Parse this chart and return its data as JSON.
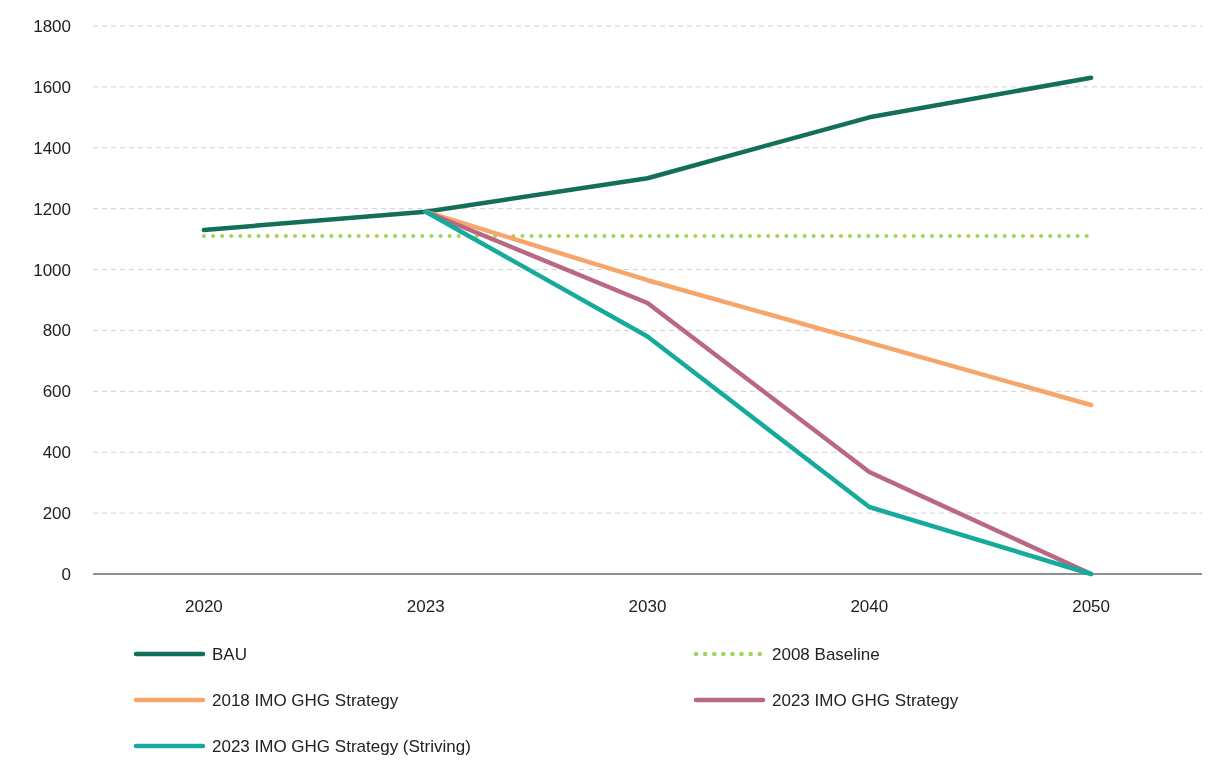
{
  "chart_data": {
    "type": "line",
    "categories": [
      "2020",
      "2023",
      "2030",
      "2040",
      "2050"
    ],
    "series": [
      {
        "name": "BAU",
        "color": "#136f57",
        "values": [
          1130,
          1190,
          1300,
          1500,
          1630
        ],
        "line_style": "solid"
      },
      {
        "name": "2008 Baseline",
        "color": "#a5d45a",
        "values": [
          1110,
          1110,
          1110,
          1110,
          1110
        ],
        "line_style": "dotted"
      },
      {
        "name": "2018 IMO GHG Strategy",
        "color": "#f6a66a",
        "values": [
          null,
          1190,
          965,
          760,
          555
        ],
        "line_style": "solid"
      },
      {
        "name": "2023 IMO GHG Strategy",
        "color": "#b96782",
        "values": [
          null,
          1190,
          890,
          335,
          0
        ],
        "line_style": "solid"
      },
      {
        "name": "2023 IMO GHG Strategy (Striving)",
        "color": "#16aa9c",
        "values": [
          null,
          1190,
          780,
          220,
          0
        ],
        "line_style": "solid"
      }
    ],
    "ylim": [
      0,
      1800
    ],
    "yticks": [
      0,
      200,
      400,
      600,
      800,
      1000,
      1200,
      1400,
      1600,
      1800
    ],
    "grid": "y",
    "legend": "bottom",
    "marker": "none"
  }
}
